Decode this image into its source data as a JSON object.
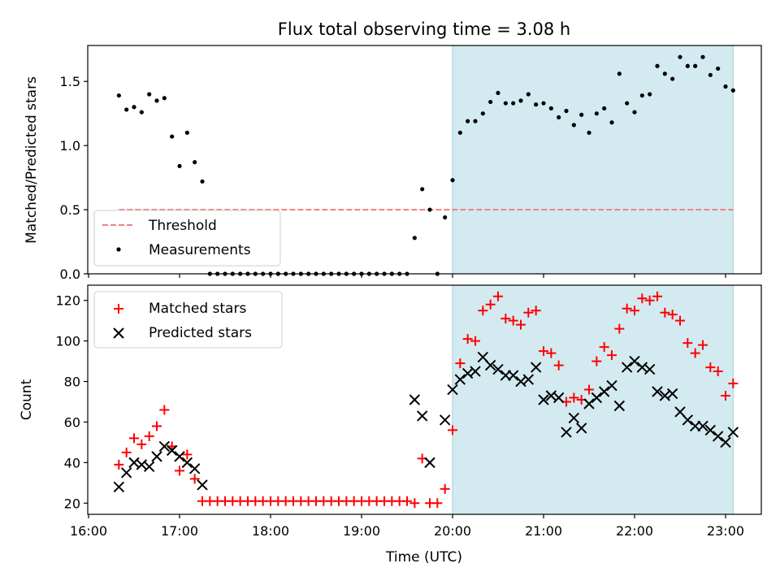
{
  "title": "Flux total observing time = 3.08 h",
  "chart_data": [
    {
      "type": "scatter",
      "ylabel": "Matched/Predicted stars",
      "ylim": [
        0,
        1.78
      ],
      "yticks": [
        0.0,
        0.5,
        1.0,
        1.5
      ],
      "ytick_labels": [
        "0.0",
        "0.5",
        "1.0",
        "1.5"
      ],
      "shaded_interval": [
        "20:00",
        "23:05"
      ],
      "shade_color": "#d3eaf0",
      "threshold": {
        "name": "Threshold",
        "value": 0.5,
        "x_range": [
          "16:20",
          "23:05"
        ],
        "color": "#f08080",
        "style": "dashed"
      },
      "legend": {
        "placement": "lower-left",
        "entries": [
          "Threshold",
          "Measurements"
        ]
      },
      "series": [
        {
          "name": "Measurements",
          "marker": "dot",
          "color": "#000000",
          "points": [
            [
              "16:20",
              1.39
            ],
            [
              "16:25",
              1.28
            ],
            [
              "16:30",
              1.3
            ],
            [
              "16:35",
              1.26
            ],
            [
              "16:40",
              1.4
            ],
            [
              "16:45",
              1.35
            ],
            [
              "16:50",
              1.37
            ],
            [
              "16:55",
              1.07
            ],
            [
              "17:00",
              0.84
            ],
            [
              "17:05",
              1.1
            ],
            [
              "17:10",
              0.87
            ],
            [
              "17:15",
              0.72
            ],
            [
              "17:20",
              0.0
            ],
            [
              "17:25",
              0.0
            ],
            [
              "17:30",
              0.0
            ],
            [
              "17:35",
              0.0
            ],
            [
              "17:40",
              0.0
            ],
            [
              "17:45",
              0.0
            ],
            [
              "17:50",
              0.0
            ],
            [
              "17:55",
              0.0
            ],
            [
              "18:00",
              0.0
            ],
            [
              "18:05",
              0.0
            ],
            [
              "18:10",
              0.0
            ],
            [
              "18:15",
              0.0
            ],
            [
              "18:20",
              0.0
            ],
            [
              "18:25",
              0.0
            ],
            [
              "18:30",
              0.0
            ],
            [
              "18:35",
              0.0
            ],
            [
              "18:40",
              0.0
            ],
            [
              "18:45",
              0.0
            ],
            [
              "18:50",
              0.0
            ],
            [
              "18:55",
              0.0
            ],
            [
              "19:00",
              0.0
            ],
            [
              "19:05",
              0.0
            ],
            [
              "19:10",
              0.0
            ],
            [
              "19:15",
              0.0
            ],
            [
              "19:20",
              0.0
            ],
            [
              "19:25",
              0.0
            ],
            [
              "19:30",
              0.0
            ],
            [
              "19:35",
              0.28
            ],
            [
              "19:40",
              0.66
            ],
            [
              "19:45",
              0.5
            ],
            [
              "19:50",
              0.0
            ],
            [
              "19:55",
              0.44
            ],
            [
              "20:00",
              0.73
            ],
            [
              "20:05",
              1.1
            ],
            [
              "20:10",
              1.19
            ],
            [
              "20:15",
              1.19
            ],
            [
              "20:20",
              1.25
            ],
            [
              "20:25",
              1.34
            ],
            [
              "20:30",
              1.41
            ],
            [
              "20:35",
              1.33
            ],
            [
              "20:40",
              1.33
            ],
            [
              "20:45",
              1.35
            ],
            [
              "20:50",
              1.4
            ],
            [
              "20:55",
              1.32
            ],
            [
              "21:00",
              1.33
            ],
            [
              "21:05",
              1.29
            ],
            [
              "21:10",
              1.22
            ],
            [
              "21:15",
              1.27
            ],
            [
              "21:20",
              1.16
            ],
            [
              "21:25",
              1.24
            ],
            [
              "21:30",
              1.1
            ],
            [
              "21:35",
              1.25
            ],
            [
              "21:40",
              1.29
            ],
            [
              "21:45",
              1.18
            ],
            [
              "21:50",
              1.56
            ],
            [
              "21:55",
              1.33
            ],
            [
              "22:00",
              1.26
            ],
            [
              "22:05",
              1.39
            ],
            [
              "22:10",
              1.4
            ],
            [
              "22:15",
              1.62
            ],
            [
              "22:20",
              1.56
            ],
            [
              "22:25",
              1.52
            ],
            [
              "22:30",
              1.69
            ],
            [
              "22:35",
              1.62
            ],
            [
              "22:40",
              1.62
            ],
            [
              "22:45",
              1.69
            ],
            [
              "22:50",
              1.55
            ],
            [
              "22:55",
              1.6
            ],
            [
              "23:00",
              1.46
            ],
            [
              "23:05",
              1.43
            ]
          ]
        }
      ]
    },
    {
      "type": "scatter",
      "ylabel": "Count",
      "xlabel": "Time (UTC)",
      "ylim": [
        14.5,
        127.5
      ],
      "yticks": [
        20,
        40,
        60,
        80,
        100,
        120
      ],
      "ytick_labels": [
        "20",
        "40",
        "60",
        "80",
        "100",
        "120"
      ],
      "xlim": [
        "16:00",
        "23:25"
      ],
      "xticks": [
        "16:00",
        "17:00",
        "18:00",
        "19:00",
        "20:00",
        "21:00",
        "22:00",
        "23:00"
      ],
      "shaded_interval": [
        "20:00",
        "23:05"
      ],
      "shade_color": "#d3eaf0",
      "legend": {
        "placement": "upper-left",
        "entries": [
          "Matched stars",
          "Predicted stars"
        ]
      },
      "series": [
        {
          "name": "Matched stars",
          "marker": "plus",
          "color": "#ff0000",
          "points": [
            [
              "16:20",
              39
            ],
            [
              "16:25",
              45
            ],
            [
              "16:30",
              52
            ],
            [
              "16:35",
              49
            ],
            [
              "16:40",
              53
            ],
            [
              "16:45",
              58
            ],
            [
              "16:50",
              66
            ],
            [
              "16:55",
              48
            ],
            [
              "17:00",
              36
            ],
            [
              "17:05",
              44
            ],
            [
              "17:10",
              32
            ],
            [
              "17:15",
              21
            ],
            [
              "17:20",
              21
            ],
            [
              "17:25",
              21
            ],
            [
              "17:30",
              21
            ],
            [
              "17:35",
              21
            ],
            [
              "17:40",
              21
            ],
            [
              "17:45",
              21
            ],
            [
              "17:50",
              21
            ],
            [
              "17:55",
              21
            ],
            [
              "18:00",
              21
            ],
            [
              "18:05",
              21
            ],
            [
              "18:10",
              21
            ],
            [
              "18:15",
              21
            ],
            [
              "18:20",
              21
            ],
            [
              "18:25",
              21
            ],
            [
              "18:30",
              21
            ],
            [
              "18:35",
              21
            ],
            [
              "18:40",
              21
            ],
            [
              "18:45",
              21
            ],
            [
              "18:50",
              21
            ],
            [
              "18:55",
              21
            ],
            [
              "19:00",
              21
            ],
            [
              "19:05",
              21
            ],
            [
              "19:10",
              21
            ],
            [
              "19:15",
              21
            ],
            [
              "19:20",
              21
            ],
            [
              "19:25",
              21
            ],
            [
              "19:30",
              21
            ],
            [
              "19:35",
              20
            ],
            [
              "19:40",
              42
            ],
            [
              "19:45",
              20
            ],
            [
              "19:50",
              20
            ],
            [
              "19:55",
              27
            ],
            [
              "20:00",
              56
            ],
            [
              "20:05",
              89
            ],
            [
              "20:10",
              101
            ],
            [
              "20:15",
              100
            ],
            [
              "20:20",
              115
            ],
            [
              "20:25",
              118
            ],
            [
              "20:30",
              122
            ],
            [
              "20:35",
              111
            ],
            [
              "20:40",
              110
            ],
            [
              "20:45",
              108
            ],
            [
              "20:50",
              114
            ],
            [
              "20:55",
              115
            ],
            [
              "21:00",
              95
            ],
            [
              "21:05",
              94
            ],
            [
              "21:10",
              88
            ],
            [
              "21:15",
              70
            ],
            [
              "21:20",
              72
            ],
            [
              "21:25",
              71
            ],
            [
              "21:30",
              76
            ],
            [
              "21:35",
              90
            ],
            [
              "21:40",
              97
            ],
            [
              "21:45",
              93
            ],
            [
              "21:50",
              106
            ],
            [
              "21:55",
              116
            ],
            [
              "22:00",
              115
            ],
            [
              "22:05",
              121
            ],
            [
              "22:10",
              120
            ],
            [
              "22:15",
              122
            ],
            [
              "22:20",
              114
            ],
            [
              "22:25",
              113
            ],
            [
              "22:30",
              110
            ],
            [
              "22:35",
              99
            ],
            [
              "22:40",
              94
            ],
            [
              "22:45",
              98
            ],
            [
              "22:50",
              87
            ],
            [
              "22:55",
              85
            ],
            [
              "23:00",
              73
            ],
            [
              "23:05",
              79
            ]
          ]
        },
        {
          "name": "Predicted stars",
          "marker": "x",
          "color": "#000000",
          "points": [
            [
              "16:20",
              28
            ],
            [
              "16:25",
              35
            ],
            [
              "16:30",
              40
            ],
            [
              "16:35",
              39
            ],
            [
              "16:40",
              38
            ],
            [
              "16:45",
              43
            ],
            [
              "16:50",
              48
            ],
            [
              "16:55",
              46
            ],
            [
              "17:00",
              43
            ],
            [
              "17:05",
              40
            ],
            [
              "17:10",
              37
            ],
            [
              "17:15",
              29
            ],
            [
              "19:35",
              71
            ],
            [
              "19:40",
              63
            ],
            [
              "19:45",
              40
            ],
            [
              "19:55",
              61
            ],
            [
              "20:00",
              76
            ],
            [
              "20:05",
              81
            ],
            [
              "20:10",
              84
            ],
            [
              "20:15",
              85
            ],
            [
              "20:20",
              92
            ],
            [
              "20:25",
              88
            ],
            [
              "20:30",
              86
            ],
            [
              "20:35",
              83
            ],
            [
              "20:40",
              83
            ],
            [
              "20:45",
              80
            ],
            [
              "20:50",
              81
            ],
            [
              "20:55",
              87
            ],
            [
              "21:00",
              71
            ],
            [
              "21:05",
              73
            ],
            [
              "21:10",
              72
            ],
            [
              "21:15",
              55
            ],
            [
              "21:20",
              62
            ],
            [
              "21:25",
              57
            ],
            [
              "21:30",
              69
            ],
            [
              "21:35",
              72
            ],
            [
              "21:40",
              75
            ],
            [
              "21:45",
              78
            ],
            [
              "21:50",
              68
            ],
            [
              "21:55",
              87
            ],
            [
              "22:00",
              90
            ],
            [
              "22:05",
              87
            ],
            [
              "22:10",
              86
            ],
            [
              "22:15",
              75
            ],
            [
              "22:20",
              73
            ],
            [
              "22:25",
              74
            ],
            [
              "22:30",
              65
            ],
            [
              "22:35",
              61
            ],
            [
              "22:40",
              58
            ],
            [
              "22:45",
              58
            ],
            [
              "22:50",
              56
            ],
            [
              "22:55",
              53
            ],
            [
              "23:00",
              50
            ],
            [
              "23:05",
              55
            ]
          ]
        }
      ]
    }
  ]
}
